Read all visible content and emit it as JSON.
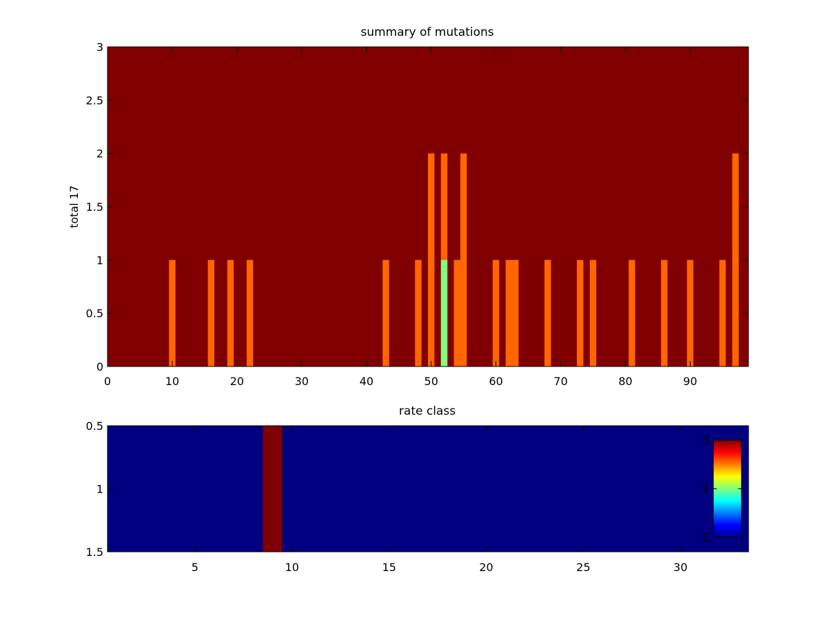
{
  "chart_data": [
    {
      "type": "heatmap",
      "title": "summary of mutations",
      "xlabel": "",
      "ylabel": "total 17",
      "xlim": [
        0,
        99
      ],
      "ylim": [
        0,
        3
      ],
      "x_ticks": [
        "0",
        "10",
        "20",
        "30",
        "40",
        "50",
        "60",
        "70",
        "80",
        "90"
      ],
      "y_ticks": [
        "0",
        "0.5",
        "1",
        "1.5",
        "2",
        "2.5",
        "3"
      ],
      "background_color": "#800000",
      "bars": [
        {
          "x": 10,
          "height": 1,
          "color": "#ff6600"
        },
        {
          "x": 16,
          "height": 1,
          "color": "#ff6600"
        },
        {
          "x": 19,
          "height": 1,
          "color": "#ff6600"
        },
        {
          "x": 22,
          "height": 1,
          "color": "#ff6600"
        },
        {
          "x": 43,
          "height": 1,
          "color": "#ff6600"
        },
        {
          "x": 48,
          "height": 1,
          "color": "#ff6600"
        },
        {
          "x": 50,
          "height": 2,
          "color": "#ff6600"
        },
        {
          "x": 52,
          "height": 2,
          "color": "#ff6600"
        },
        {
          "x": 52,
          "height": 1,
          "color": "#80ff80"
        },
        {
          "x": 54,
          "height": 1,
          "color": "#ff6600"
        },
        {
          "x": 55,
          "height": 2,
          "color": "#ff6600"
        },
        {
          "x": 60,
          "height": 1,
          "color": "#ff6600"
        },
        {
          "x": 62,
          "height": 1,
          "color": "#ff6600"
        },
        {
          "x": 63,
          "height": 1,
          "color": "#ff6600"
        },
        {
          "x": 68,
          "height": 1,
          "color": "#ff6600"
        },
        {
          "x": 73,
          "height": 1,
          "color": "#ff6600"
        },
        {
          "x": 75,
          "height": 1,
          "color": "#ff6600"
        },
        {
          "x": 81,
          "height": 1,
          "color": "#ff6600"
        },
        {
          "x": 86,
          "height": 1,
          "color": "#ff6600"
        },
        {
          "x": 90,
          "height": 1,
          "color": "#ff6600"
        },
        {
          "x": 95,
          "height": 1,
          "color": "#ff6600"
        },
        {
          "x": 97,
          "height": 2,
          "color": "#ff6600"
        }
      ]
    },
    {
      "type": "heatmap",
      "title": "rate class",
      "xlabel": "",
      "ylabel": "",
      "xlim": [
        0.5,
        33.5
      ],
      "ylim": [
        0.5,
        1.5
      ],
      "y_reversed": true,
      "x_ticks": [
        "5",
        "10",
        "15",
        "20",
        "25",
        "30"
      ],
      "y_ticks": [
        "0.5",
        "1",
        "1.5"
      ],
      "values": [
        1,
        1,
        1,
        1,
        1,
        1,
        1,
        1,
        3,
        1,
        1,
        1,
        1,
        1,
        1,
        1,
        1,
        1,
        1,
        1,
        1,
        1,
        1,
        1,
        1,
        1,
        1,
        1,
        1,
        1,
        1,
        1,
        1
      ],
      "colormap": "jet",
      "clim": [
        1,
        3
      ],
      "colorbar": {
        "ticks": [
          "1",
          "2",
          "3"
        ],
        "location": "inside-east"
      }
    }
  ]
}
